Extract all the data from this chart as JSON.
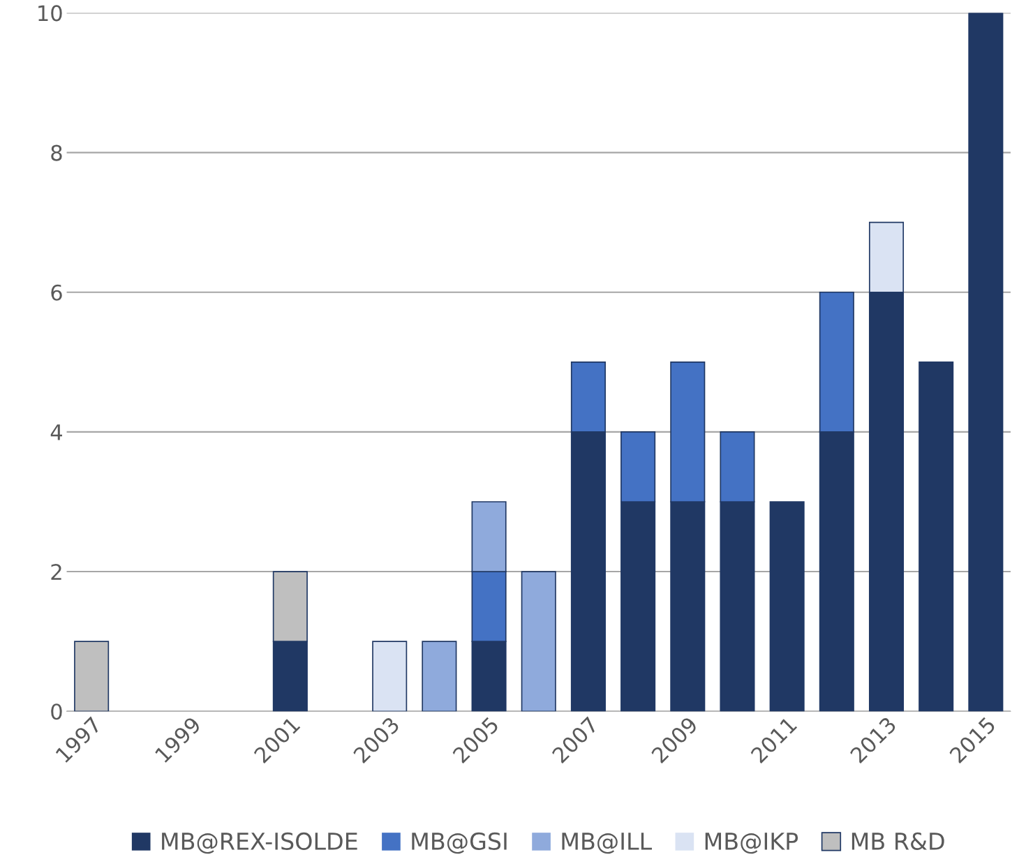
{
  "chart_data": {
    "type": "bar",
    "stacked": true,
    "categories": [
      "1997",
      null,
      "1999",
      null,
      "2001",
      null,
      "2003",
      null,
      "2005",
      null,
      "2007",
      null,
      "2009",
      null,
      "2011",
      null,
      "2013",
      null,
      "2015"
    ],
    "series": [
      {
        "name": "MB@REX-ISOLDE",
        "color": "#203864",
        "values": [
          0,
          0,
          0,
          0,
          1,
          0,
          0,
          0,
          1,
          0,
          4,
          3,
          3,
          3,
          3,
          4,
          6,
          5,
          10
        ]
      },
      {
        "name": "MB@GSI",
        "color": "#4472c4",
        "values": [
          0,
          0,
          0,
          0,
          0,
          0,
          0,
          0,
          1,
          0,
          1,
          1,
          2,
          1,
          0,
          2,
          0,
          0,
          0
        ]
      },
      {
        "name": "MB@ILL",
        "color": "#8faadc",
        "values": [
          0,
          0,
          0,
          0,
          0,
          0,
          0,
          1,
          1,
          2,
          0,
          0,
          0,
          0,
          0,
          0,
          0,
          0,
          0
        ]
      },
      {
        "name": "MB@IKP",
        "color": "#dae3f3",
        "values": [
          0,
          0,
          0,
          0,
          0,
          0,
          1,
          0,
          0,
          0,
          0,
          0,
          0,
          0,
          0,
          0,
          1,
          0,
          0
        ]
      },
      {
        "name": "MB R&D",
        "color": "#bfbfbf",
        "values": [
          1,
          0,
          0,
          0,
          1,
          0,
          0,
          0,
          0,
          0,
          0,
          0,
          0,
          0,
          0,
          0,
          0,
          0,
          0
        ]
      }
    ],
    "ylim": [
      0,
      10
    ],
    "yticks": [
      0,
      2,
      4,
      6,
      8,
      10
    ],
    "grid": "y",
    "legend": "bottom"
  }
}
